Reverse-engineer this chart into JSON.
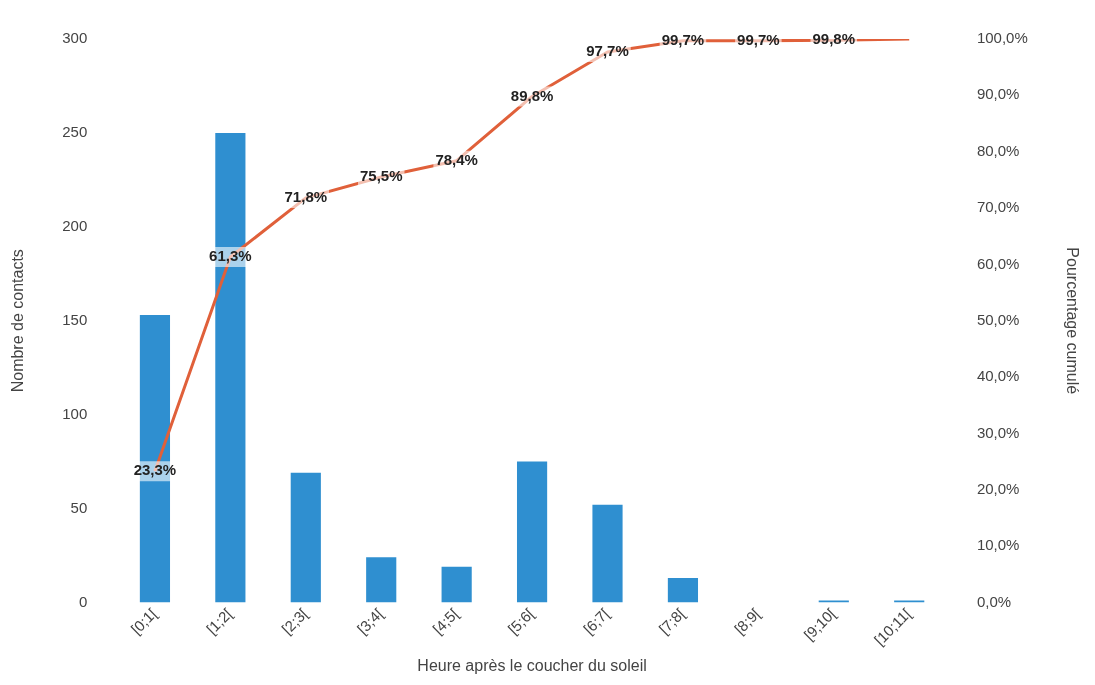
{
  "chart_data": {
    "type": "bar",
    "xlabel": "Heure après le coucher du soleil",
    "ylabel": "Nombre de contacts",
    "y2label": "Pourcentage cumulé",
    "categories": [
      "[0;1[",
      "[1;2[",
      "[2;3[",
      "[3;4[",
      "[4;5[",
      "[5;6[",
      "[6;7[",
      "[7;8[",
      "[8;9[",
      "[9;10[",
      "[10;11["
    ],
    "series": [
      {
        "color": "#2f8fd0",
        "values": [
          153,
          250,
          69,
          24,
          19,
          75,
          52,
          13,
          0,
          1,
          1
        ]
      },
      {
        "type": "line",
        "axis": "y2",
        "color": "#e0603a",
        "values": [
          23.3,
          61.3,
          71.8,
          75.5,
          78.4,
          89.8,
          97.7,
          99.7,
          99.7,
          99.8,
          100
        ],
        "value_labels": [
          "23,3%",
          "61,3%",
          "71,8%",
          "75,5%",
          "78,4%",
          "89,8%",
          "97,7%",
          "99,7%",
          "99,7%",
          "99,8%",
          null
        ]
      }
    ],
    "ylim": [
      0,
      300
    ],
    "yticks": [
      0,
      50,
      100,
      150,
      200,
      250,
      300
    ],
    "y2lim": [
      0,
      100
    ],
    "y2ticks": [
      {
        "value": 0,
        "label": "0,0%"
      },
      {
        "value": 10,
        "label": "10,0%"
      },
      {
        "value": 20,
        "label": "20,0%"
      },
      {
        "value": 30,
        "label": "30,0%"
      },
      {
        "value": 40,
        "label": "40,0%"
      },
      {
        "value": 50,
        "label": "50,0%"
      },
      {
        "value": 60,
        "label": "60,0%"
      },
      {
        "value": 70,
        "label": "70,0%"
      },
      {
        "value": 80,
        "label": "80,0%"
      },
      {
        "value": 90,
        "label": "90,0%"
      },
      {
        "value": 100,
        "label": "100,0%"
      }
    ],
    "grid": false,
    "legend": false,
    "marker": "none"
  }
}
